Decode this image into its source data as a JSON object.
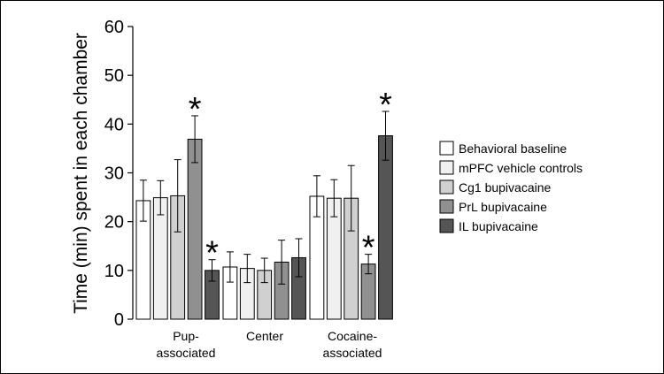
{
  "chart_data": {
    "type": "bar",
    "categories": [
      [
        "Pup-",
        "associated"
      ],
      [
        "Center"
      ],
      [
        "Cocaine-",
        "associated"
      ]
    ],
    "ylabel": "Time (min) spent in each chamber",
    "xlabel": "",
    "ylim": [
      0,
      60
    ],
    "yticks": [
      "0",
      "10",
      "20",
      "30",
      "40",
      "50",
      "60"
    ],
    "grid": false,
    "legend_position": "right",
    "colors": {
      "Behavioral baseline": "#ffffff",
      "mPFC vehicle controls": "#f0f0f0",
      "Cg1 bupivacaine": "#d0d0d0",
      "PrL bupivacaine": "#909090",
      "IL bupivacaine": "#555555"
    },
    "series": [
      {
        "name": "Behavioral baseline",
        "values": [
          24.3,
          10.7,
          25.2
        ],
        "errors": [
          4.2,
          3.1,
          4.2
        ]
      },
      {
        "name": "mPFC vehicle controls",
        "values": [
          24.9,
          10.4,
          24.8
        ],
        "errors": [
          3.5,
          2.9,
          3.8
        ]
      },
      {
        "name": "Cg1 bupivacaine",
        "values": [
          25.3,
          10.0,
          24.8
        ],
        "errors": [
          7.4,
          2.5,
          6.7
        ]
      },
      {
        "name": "PrL bupivacaine",
        "values": [
          36.9,
          11.7,
          11.3
        ],
        "errors": [
          4.8,
          4.5,
          2.0
        ]
      },
      {
        "name": "IL bupivacaine",
        "values": [
          10.0,
          12.6,
          37.6
        ],
        "errors": [
          2.2,
          3.9,
          5.0
        ]
      }
    ],
    "significance_marks": [
      {
        "series": "PrL bupivacaine",
        "category": 0,
        "label": "*"
      },
      {
        "series": "IL bupivacaine",
        "category": 0,
        "label": "*"
      },
      {
        "series": "PrL bupivacaine",
        "category": 2,
        "label": "*"
      },
      {
        "series": "IL bupivacaine",
        "category": 2,
        "label": "*"
      }
    ]
  }
}
